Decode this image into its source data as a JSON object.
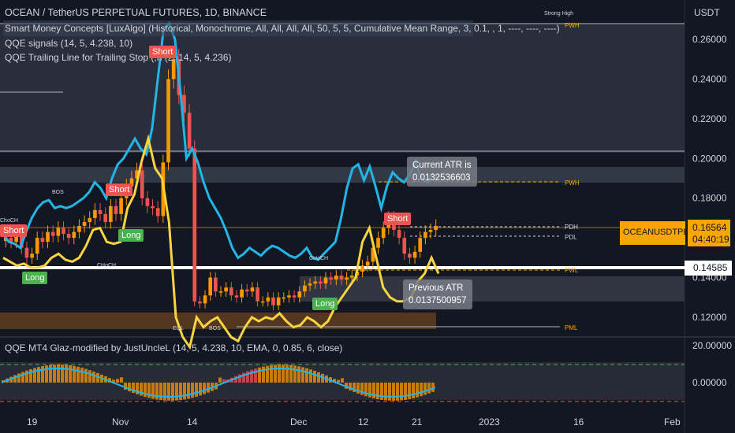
{
  "header": {
    "title": "OCEAN / TetherUS PERPETUAL FUTURES, 1D, BINANCE",
    "indicator_smc": "Smart Money Concepts [LuxAlgo] (Historical, Monochrome, All, All, All, All, 50, 5, 5, Cumulative Mean Range, 3, 0.1, , 1, ----, ----, ----)",
    "indicator_qqe_signals": "QQE signals (14, 5, 4.238, 10)",
    "indicator_qqe_trailing": "QQE Trailing Line for Trailing Stop (,h (2, 14, 5, 4.236)",
    "indicator_qqe_mt4": "QQE MT4 Glaz-modified by JustUncleL (14, 5, 4.238, 10, EMA, 0, 0.85, 6, close)"
  },
  "price_axis": {
    "currency": "USDT",
    "ticks": [
      "0.26000",
      "0.24000",
      "0.22000",
      "0.20000",
      "0.18000",
      "0.14000",
      "0.12000"
    ],
    "current_symbol": "OCEANUSDTPERP",
    "current_price": "0.16564",
    "countdown": "04:40:19",
    "white_line_price": "0.14585"
  },
  "oscillator_axis": {
    "ticks": [
      "20.00000",
      "0.00000"
    ]
  },
  "time_axis": {
    "ticks": [
      "19",
      "Nov",
      "14",
      "Dec",
      "12",
      "21",
      "2023",
      "16",
      "Feb"
    ]
  },
  "levels": {
    "pwh": "PWH",
    "pdh": "PDH",
    "pdl": "PDL",
    "pwl": "PWL",
    "pml": "PML",
    "strong_high": "Strong High"
  },
  "structure_labels": {
    "bos": "BOS",
    "choch": "CHoCH",
    "eql": "EQL",
    "choch_short": "ChoCH"
  },
  "signals": {
    "short": "Short",
    "long": "Long"
  },
  "callouts": {
    "current_atr_line1": "Current ATR is",
    "current_atr_line2": "0.0132536603",
    "previous_atr_line1": "Previous ATR",
    "previous_atr_line2": "0.0137500957"
  },
  "colors": {
    "bg": "#131722",
    "up": "#26a69a",
    "down": "#ef5350",
    "orange": "#ff9800",
    "cyan": "#22b5e6",
    "yellow": "#f7d440",
    "green": "#4caf50"
  },
  "chart_data": {
    "type": "candlestick",
    "title": "OCEAN / TetherUS PERPETUAL FUTURES, 1D, BINANCE",
    "ylim": [
      0.115,
      0.275
    ],
    "close": [
      0.16,
      0.158,
      0.162,
      0.155,
      0.15,
      0.152,
      0.16,
      0.158,
      0.163,
      0.161,
      0.165,
      0.162,
      0.16,
      0.163,
      0.166,
      0.168,
      0.17,
      0.174,
      0.172,
      0.168,
      0.176,
      0.172,
      0.18,
      0.186,
      0.19,
      0.194,
      0.18,
      0.176,
      0.175,
      0.171,
      0.198,
      0.24,
      0.25,
      0.232,
      0.223,
      0.205,
      0.128,
      0.127,
      0.131,
      0.14,
      0.133,
      0.133,
      0.135,
      0.131,
      0.13,
      0.134,
      0.133,
      0.135,
      0.128,
      0.128,
      0.13,
      0.126,
      0.13,
      0.13,
      0.131,
      0.13,
      0.133,
      0.136,
      0.137,
      0.138,
      0.137,
      0.14,
      0.139,
      0.141,
      0.139,
      0.14,
      0.141,
      0.143,
      0.146,
      0.148,
      0.155,
      0.16,
      0.165,
      0.17,
      0.164,
      0.16,
      0.152,
      0.15,
      0.153,
      0.16,
      0.163,
      0.164,
      0.166
    ],
    "upper_band": [
      0.162,
      0.158,
      0.157,
      0.155,
      0.163,
      0.17,
      0.175,
      0.178,
      0.179,
      0.175,
      0.176,
      0.175,
      0.176,
      0.178,
      0.18,
      0.183,
      0.188,
      0.185,
      0.18,
      0.19,
      0.197,
      0.2,
      0.205,
      0.21,
      0.205,
      0.202,
      0.215,
      0.24,
      0.265,
      0.268,
      0.26,
      0.232,
      0.2,
      0.205,
      0.198,
      0.188,
      0.18,
      0.175,
      0.17,
      0.163,
      0.155,
      0.15,
      0.152,
      0.155,
      0.153,
      0.151,
      0.154,
      0.156,
      0.155,
      0.153,
      0.151,
      0.15,
      0.152,
      0.155,
      0.15,
      0.149,
      0.152,
      0.155,
      0.158,
      0.17,
      0.185,
      0.195,
      0.197,
      0.189,
      0.196,
      0.186,
      0.175,
      0.186,
      0.193,
      0.19,
      0.188,
      0.192,
      0.198,
      0.19,
      0.188,
      0.192,
      0.19
    ],
    "lower_band": [
      0.15,
      0.148,
      0.146,
      0.147,
      0.145,
      0.145,
      0.146,
      0.15,
      0.152,
      0.149,
      0.148,
      0.15,
      0.156,
      0.164,
      0.165,
      0.158,
      0.157,
      0.158,
      0.175,
      0.182,
      0.198,
      0.21,
      0.195,
      0.19,
      0.168,
      0.12,
      0.11,
      0.105,
      0.12,
      0.115,
      0.118,
      0.12,
      0.115,
      0.11,
      0.108,
      0.115,
      0.12,
      0.118,
      0.12,
      0.119,
      0.122,
      0.118,
      0.115,
      0.116,
      0.12,
      0.118,
      0.115,
      0.118,
      0.125,
      0.13,
      0.135,
      0.14,
      0.158,
      0.165,
      0.15,
      0.135,
      0.13,
      0.128,
      0.128,
      0.13,
      0.138,
      0.142,
      0.15,
      0.142
    ],
    "oscillator_ticks": [
      20,
      0
    ]
  }
}
